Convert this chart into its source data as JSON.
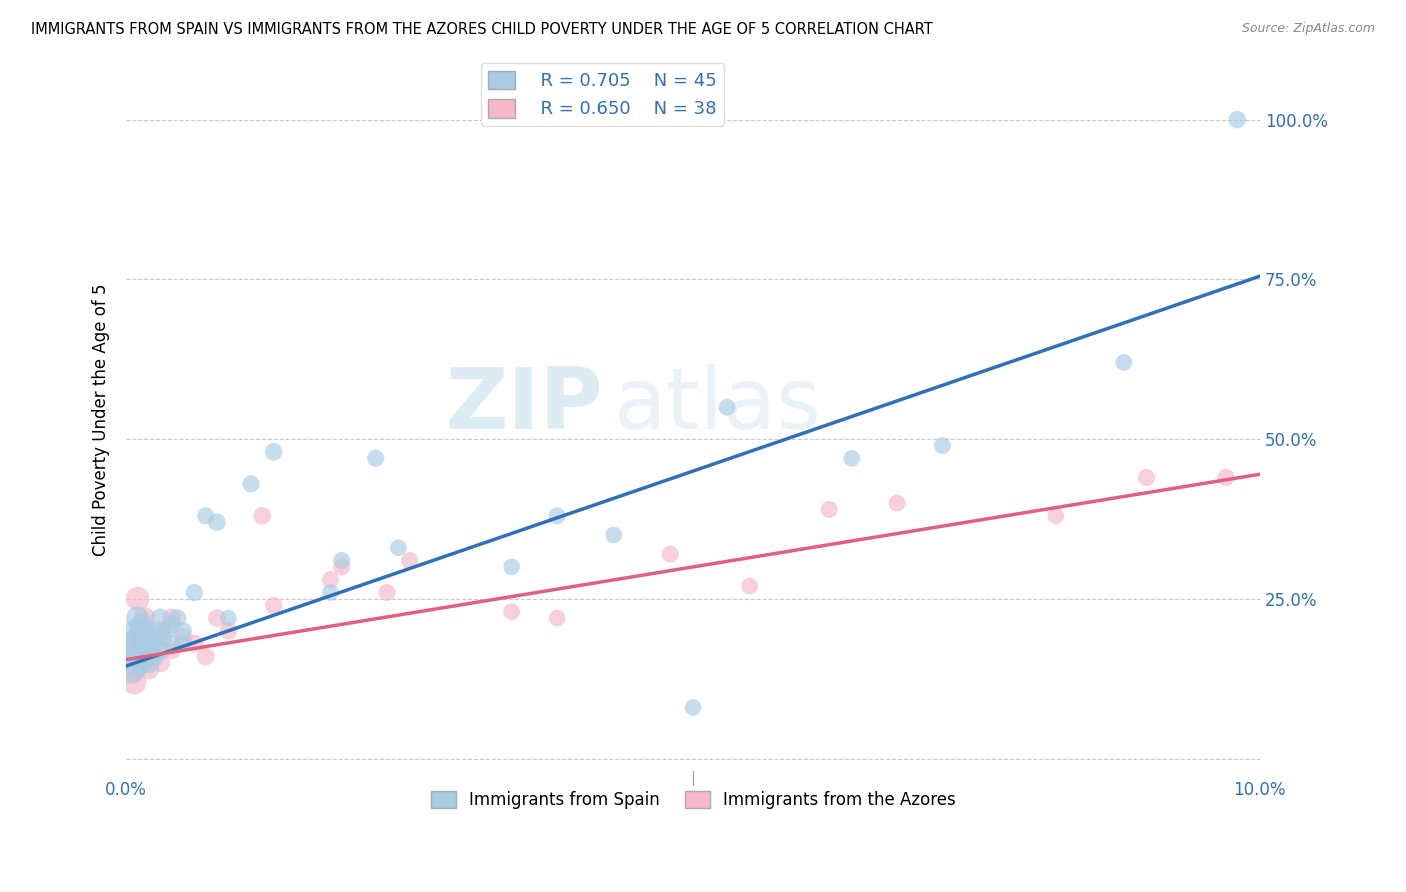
{
  "title": "IMMIGRANTS FROM SPAIN VS IMMIGRANTS FROM THE AZORES CHILD POVERTY UNDER THE AGE OF 5 CORRELATION CHART",
  "source": "Source: ZipAtlas.com",
  "ylabel": "Child Poverty Under the Age of 5",
  "xlim": [
    0.0,
    0.1
  ],
  "ylim": [
    -0.02,
    1.08
  ],
  "x_ticks": [
    0.0,
    0.02,
    0.04,
    0.06,
    0.08,
    0.1
  ],
  "x_tick_labels": [
    "0.0%",
    "",
    "",
    "",
    "",
    "10.0%"
  ],
  "y_ticks": [
    0.0,
    0.25,
    0.5,
    0.75,
    1.0
  ],
  "y_tick_labels": [
    "",
    "25.0%",
    "50.0%",
    "75.0%",
    "100.0%"
  ],
  "blue_color": "#a8cce4",
  "pink_color": "#f4b8c8",
  "blue_line_color": "#3070b8",
  "pink_line_color": "#e06080",
  "watermark_zip": "ZIP",
  "watermark_atlas": "atlas",
  "legend_r_blue": "R = 0.705",
  "legend_n_blue": "N = 45",
  "legend_r_pink": "R = 0.650",
  "legend_n_pink": "N = 38",
  "legend_label_blue": "Immigrants from Spain",
  "legend_label_pink": "Immigrants from the Azores",
  "blue_scatter_x": [
    0.0003,
    0.0005,
    0.0006,
    0.0008,
    0.001,
    0.001,
    0.0012,
    0.0012,
    0.0014,
    0.0015,
    0.0016,
    0.0018,
    0.002,
    0.002,
    0.0022,
    0.0024,
    0.0025,
    0.003,
    0.003,
    0.0032,
    0.0035,
    0.004,
    0.004,
    0.0045,
    0.005,
    0.005,
    0.006,
    0.007,
    0.008,
    0.009,
    0.011,
    0.013,
    0.018,
    0.019,
    0.022,
    0.024,
    0.034,
    0.038,
    0.043,
    0.05,
    0.053,
    0.064,
    0.072,
    0.088,
    0.098
  ],
  "blue_scatter_y": [
    0.16,
    0.14,
    0.18,
    0.2,
    0.15,
    0.22,
    0.17,
    0.19,
    0.21,
    0.16,
    0.18,
    0.2,
    0.15,
    0.18,
    0.17,
    0.16,
    0.19,
    0.17,
    0.22,
    0.19,
    0.2,
    0.21,
    0.18,
    0.22,
    0.18,
    0.2,
    0.26,
    0.38,
    0.37,
    0.22,
    0.43,
    0.48,
    0.26,
    0.31,
    0.47,
    0.33,
    0.3,
    0.38,
    0.35,
    0.08,
    0.55,
    0.47,
    0.49,
    0.62,
    1.0
  ],
  "pink_scatter_x": [
    0.0003,
    0.0005,
    0.0007,
    0.0009,
    0.001,
    0.0012,
    0.0014,
    0.0015,
    0.0016,
    0.0018,
    0.002,
    0.002,
    0.0022,
    0.0025,
    0.003,
    0.003,
    0.004,
    0.004,
    0.005,
    0.006,
    0.007,
    0.008,
    0.009,
    0.012,
    0.013,
    0.018,
    0.019,
    0.023,
    0.025,
    0.034,
    0.038,
    0.048,
    0.055,
    0.062,
    0.068,
    0.082,
    0.09,
    0.097
  ],
  "pink_scatter_y": [
    0.14,
    0.18,
    0.12,
    0.16,
    0.25,
    0.2,
    0.18,
    0.15,
    0.22,
    0.19,
    0.17,
    0.14,
    0.16,
    0.18,
    0.15,
    0.2,
    0.17,
    0.22,
    0.19,
    0.18,
    0.16,
    0.22,
    0.2,
    0.38,
    0.24,
    0.28,
    0.3,
    0.26,
    0.31,
    0.23,
    0.22,
    0.32,
    0.27,
    0.39,
    0.4,
    0.38,
    0.44,
    0.44
  ],
  "blue_marker_sizes": [
    600,
    400,
    350,
    300,
    350,
    280,
    300,
    260,
    250,
    280,
    250,
    240,
    220,
    230,
    200,
    220,
    210,
    200,
    190,
    180,
    180,
    170,
    175,
    165,
    160,
    165,
    155,
    150,
    160,
    145,
    155,
    160,
    145,
    150,
    155,
    145,
    145,
    150,
    145,
    145,
    150,
    145,
    150,
    145,
    160
  ],
  "pink_marker_sizes": [
    500,
    350,
    320,
    290,
    300,
    260,
    250,
    240,
    250,
    230,
    210,
    220,
    200,
    210,
    190,
    200,
    180,
    185,
    175,
    170,
    165,
    165,
    160,
    160,
    155,
    150,
    155,
    150,
    150,
    145,
    145,
    150,
    145,
    150,
    150,
    145,
    155,
    155
  ],
  "blue_line_x": [
    0.0,
    0.1
  ],
  "blue_line_y": [
    0.145,
    0.755
  ],
  "pink_line_x": [
    0.0,
    0.1
  ],
  "pink_line_y": [
    0.155,
    0.445
  ]
}
